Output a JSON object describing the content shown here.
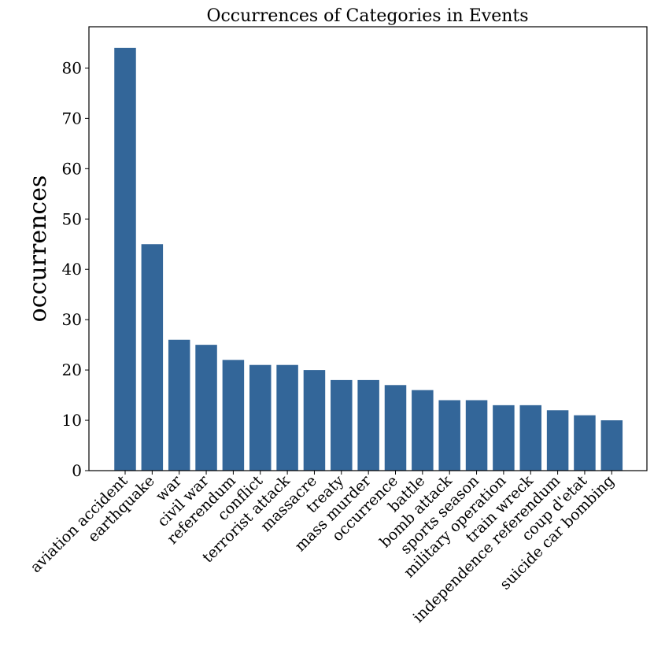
{
  "chart_data": {
    "type": "bar",
    "title": "Occurrences of Categories in Events",
    "xlabel": "",
    "ylabel": "occurrences",
    "ylim": [
      0,
      88.2
    ],
    "yticks": [
      0,
      10,
      20,
      30,
      40,
      50,
      60,
      70,
      80
    ],
    "bar_color": "#336699",
    "grid": false,
    "categories": [
      "aviation accident",
      "earthquake",
      "war",
      "civil war",
      "referendum",
      "conflict",
      "terrorist attack",
      "massacre",
      "treaty",
      "mass murder",
      "occurrence",
      "battle",
      "bomb attack",
      "sports season",
      "military operation",
      "train wreck",
      "independence referendum",
      "coup d'etat",
      "suicide car bombing"
    ],
    "values": [
      84,
      45,
      26,
      25,
      22,
      21,
      21,
      20,
      18,
      18,
      17,
      16,
      14,
      14,
      13,
      13,
      12,
      11,
      10
    ]
  }
}
